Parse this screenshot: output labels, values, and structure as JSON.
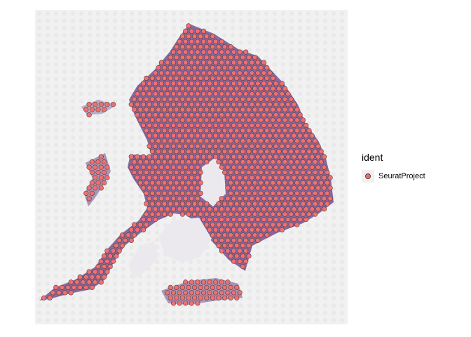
{
  "chart_data": {
    "type": "scatter",
    "title": "",
    "xlabel": "",
    "ylabel": "",
    "grid": false,
    "axes_visible": false,
    "background": "H&E stained tissue section image",
    "legend": {
      "title": "ident",
      "position": "right",
      "entries": [
        {
          "label": "SeuratProject",
          "color": "#f07070",
          "edge_color": "#5a3a3a"
        }
      ]
    },
    "series": [
      {
        "name": "SeuratProject",
        "point_layout": "hexagonal spot array covering the tissue section"
      }
    ]
  },
  "colors": {
    "background": "#f1f1f1",
    "tissue": "#7a5a96",
    "spot_fill": "#f07070",
    "spot_edge": "#5a3a3a"
  }
}
